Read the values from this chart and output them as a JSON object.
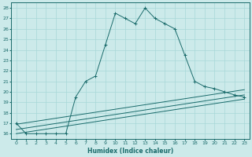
{
  "xlabel": "Humidex (Indice chaleur)",
  "bg_color": "#cceaea",
  "line_color": "#1a6b6b",
  "grid_color": "#a8d8d8",
  "xlim": [
    -0.5,
    23.5
  ],
  "ylim": [
    15.5,
    28.5
  ],
  "yticks": [
    16,
    17,
    18,
    19,
    20,
    21,
    22,
    23,
    24,
    25,
    26,
    27,
    28
  ],
  "xticks": [
    0,
    1,
    2,
    3,
    4,
    5,
    6,
    7,
    8,
    9,
    10,
    11,
    12,
    13,
    14,
    15,
    16,
    17,
    18,
    19,
    20,
    21,
    22,
    23
  ],
  "main_x": [
    0,
    1,
    2,
    3,
    4,
    5,
    6,
    7,
    8,
    9,
    10,
    11,
    12,
    13,
    14,
    15,
    16,
    17,
    18,
    19,
    20,
    21,
    22,
    23
  ],
  "main_y": [
    17.0,
    16.0,
    16.0,
    16.0,
    16.0,
    16.0,
    19.5,
    21.0,
    21.5,
    24.5,
    27.5,
    27.0,
    26.5,
    28.0,
    27.0,
    26.5,
    26.0,
    23.5,
    21.0,
    20.5,
    20.3,
    20.0,
    19.7,
    19.5
  ],
  "line1_x": [
    0,
    23
  ],
  "line1_y": [
    16.0,
    19.3
  ],
  "line2_x": [
    0,
    23
  ],
  "line2_y": [
    16.4,
    19.7
  ],
  "line3_x": [
    0,
    23
  ],
  "line3_y": [
    16.9,
    20.2
  ]
}
